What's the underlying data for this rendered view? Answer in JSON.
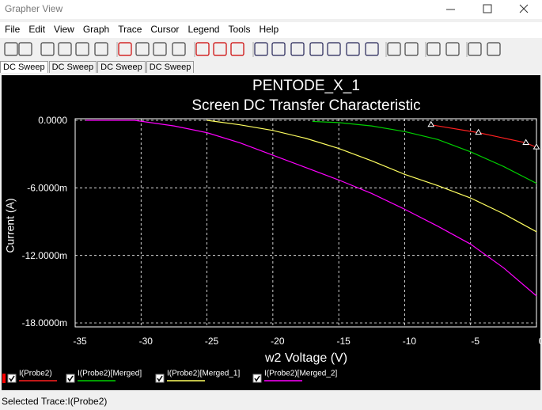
{
  "window": {
    "title": "Grapher View"
  },
  "menu": [
    "File",
    "Edit",
    "View",
    "Graph",
    "Trace",
    "Cursor",
    "Legend",
    "Tools",
    "Help"
  ],
  "tabs": [
    "DC Sweep",
    "DC Sweep",
    "DC Sweep",
    "DC Sweep"
  ],
  "chart_data": {
    "type": "line",
    "title": "PENTODE_X_1",
    "subtitle": "Screen DC Transfer Characteristic",
    "x_label": "w2 Voltage (V)",
    "y_label": "Current (A)",
    "xlim": [
      -35,
      0
    ],
    "xticks": [
      -35,
      -30,
      -25,
      -20,
      -15,
      -10,
      -5,
      0
    ],
    "ylim": [
      -0.018,
      0
    ],
    "yticks": [
      {
        "value": 0,
        "label": "0.0000"
      },
      {
        "value": -0.006,
        "label": "-6.0000m"
      },
      {
        "value": -0.012,
        "label": "-12.0000m"
      },
      {
        "value": -0.018,
        "label": "-18.0000m"
      }
    ],
    "grid": true,
    "background": "#000000",
    "series": [
      {
        "name": "I(Probe2)",
        "color": "#ff2020",
        "marker": "triangle",
        "x": [
          -8,
          -4.4,
          -0.8,
          0
        ],
        "values": [
          -0.0004,
          -0.0011,
          -0.002,
          -0.0024
        ]
      },
      {
        "name": "I(Probe2)[Merged]",
        "color": "#00d000",
        "x": [
          -17,
          -15,
          -12.5,
          -10,
          -7.5,
          -5,
          -2.5,
          0
        ],
        "values": [
          -0.0001,
          -0.0002,
          -0.0005,
          -0.001,
          -0.0017,
          -0.0028,
          -0.0041,
          -0.0056
        ]
      },
      {
        "name": "I(Probe2)[Merged_1]",
        "color": "#ffff60",
        "x": [
          -25,
          -22.5,
          -20,
          -17.5,
          -15,
          -12.5,
          -10,
          -7.5,
          -5,
          -2.5,
          0
        ],
        "values": [
          0,
          -0.0004,
          -0.0009,
          -0.0016,
          -0.0025,
          -0.0036,
          -0.0048,
          -0.0058,
          -0.0069,
          -0.0083,
          -0.0099
        ]
      },
      {
        "name": "I(Probe2)[Merged_2]",
        "color": "#ff00ff",
        "x": [
          -34.2,
          -30.5,
          -27.5,
          -25,
          -22.5,
          -20,
          -17.5,
          -15,
          -12.5,
          -10,
          -7.5,
          -5,
          -2.5,
          0
        ],
        "values": [
          0,
          0,
          -0.0005,
          -0.0011,
          -0.002,
          -0.0031,
          -0.0042,
          -0.0053,
          -0.0065,
          -0.0079,
          -0.0094,
          -0.011,
          -0.0131,
          -0.0156
        ]
      }
    ]
  },
  "status_bar": "Selected Trace:I(Probe2)"
}
